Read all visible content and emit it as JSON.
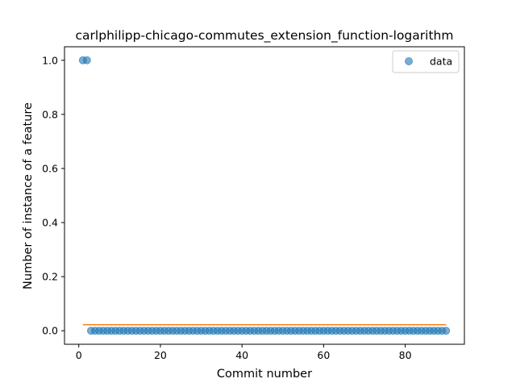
{
  "chart_data": {
    "type": "scatter",
    "title": "carlphilipp-chicago-commutes_extension_function-logarithm",
    "xlabel": "Commit number",
    "ylabel": "Number of instance of a feature",
    "xlim": [
      -3.5,
      94.5
    ],
    "ylim": [
      -0.05,
      1.05
    ],
    "xticks": [
      0,
      20,
      40,
      60,
      80
    ],
    "yticks": [
      0.0,
      0.2,
      0.4,
      0.6,
      0.8,
      1.0
    ],
    "ytick_labels": [
      "0.0",
      "0.2",
      "0.4",
      "0.6",
      "0.8",
      "1.0"
    ],
    "legend": {
      "placement": "top-right",
      "entries": [
        "data"
      ]
    },
    "grid": false,
    "series": [
      {
        "name": "data",
        "kind": "scatter",
        "color": "#1f77b4",
        "x": [
          1,
          2,
          3,
          4,
          5,
          6,
          7,
          8,
          9,
          10,
          11,
          12,
          13,
          14,
          15,
          16,
          17,
          18,
          19,
          20,
          21,
          22,
          23,
          24,
          25,
          26,
          27,
          28,
          29,
          30,
          31,
          32,
          33,
          34,
          35,
          36,
          37,
          38,
          39,
          40,
          41,
          42,
          43,
          44,
          45,
          46,
          47,
          48,
          49,
          50,
          51,
          52,
          53,
          54,
          55,
          56,
          57,
          58,
          59,
          60,
          61,
          62,
          63,
          64,
          65,
          66,
          67,
          68,
          69,
          70,
          71,
          72,
          73,
          74,
          75,
          76,
          77,
          78,
          79,
          80,
          81,
          82,
          83,
          84,
          85,
          86,
          87,
          88,
          89,
          90
        ],
        "y": [
          1,
          1,
          0,
          0,
          0,
          0,
          0,
          0,
          0,
          0,
          0,
          0,
          0,
          0,
          0,
          0,
          0,
          0,
          0,
          0,
          0,
          0,
          0,
          0,
          0,
          0,
          0,
          0,
          0,
          0,
          0,
          0,
          0,
          0,
          0,
          0,
          0,
          0,
          0,
          0,
          0,
          0,
          0,
          0,
          0,
          0,
          0,
          0,
          0,
          0,
          0,
          0,
          0,
          0,
          0,
          0,
          0,
          0,
          0,
          0,
          0,
          0,
          0,
          0,
          0,
          0,
          0,
          0,
          0,
          0,
          0,
          0,
          0,
          0,
          0,
          0,
          0,
          0,
          0,
          0,
          0,
          0,
          0,
          0,
          0,
          0,
          0,
          0,
          0,
          0
        ]
      },
      {
        "kind": "line",
        "color": "#ff7f0e",
        "x": [
          1,
          90
        ],
        "y": [
          0.0222,
          0.0222
        ]
      }
    ]
  }
}
